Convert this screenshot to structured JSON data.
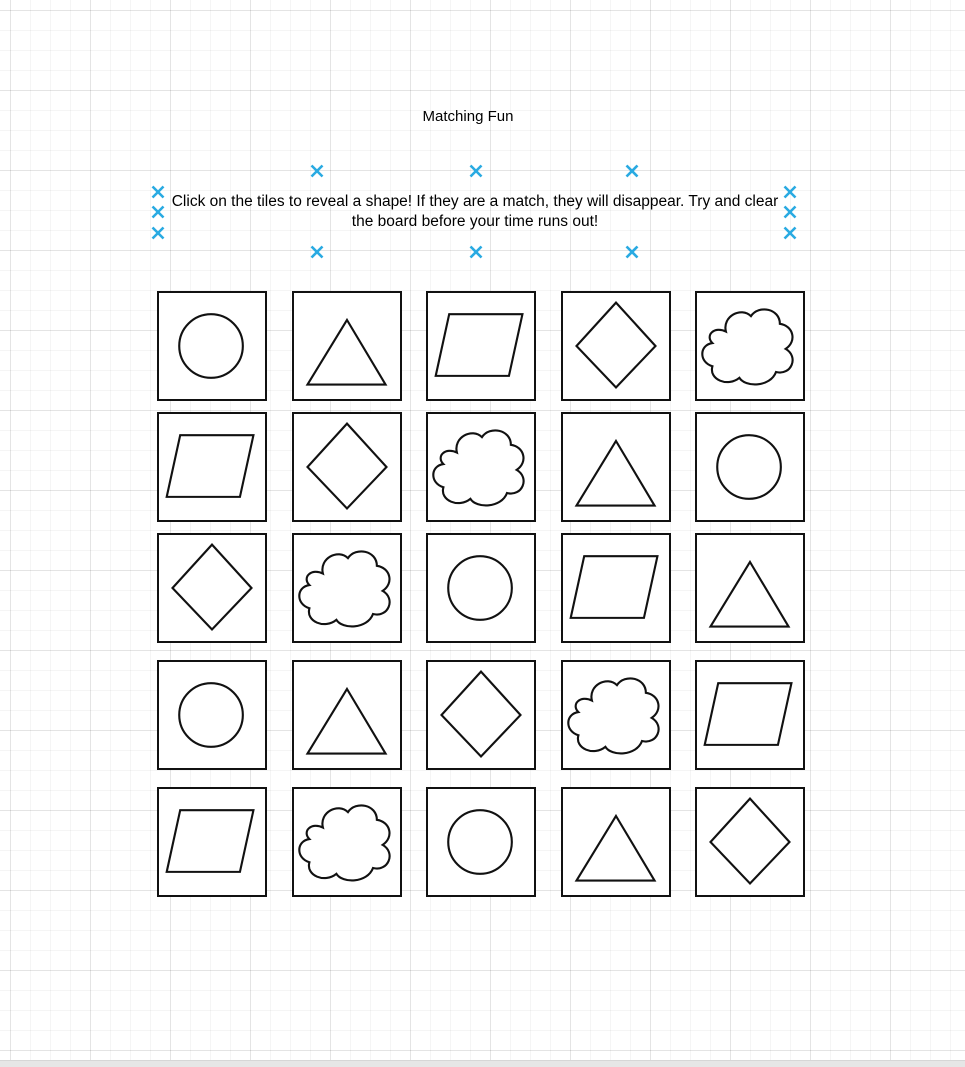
{
  "title": "Matching Fun",
  "instructions": "Click on the tiles to reveal a shape!  If they are a match, they will disappear. Try and clear the board before your time runs out!",
  "colors": {
    "handle": "#29aae2",
    "tile_stroke": "#111111",
    "grid_line": "#e9e9e9",
    "background": "#ffffff"
  },
  "board": {
    "rows": 5,
    "columns": 5,
    "tiles": [
      [
        "circle-icon",
        "triangle-icon",
        "parallelogram-icon",
        "diamond-icon",
        "cloud-icon"
      ],
      [
        "parallelogram-icon",
        "diamond-icon",
        "cloud-icon",
        "triangle-icon",
        "circle-icon"
      ],
      [
        "diamond-icon",
        "cloud-icon",
        "circle-icon",
        "parallelogram-icon",
        "triangle-icon"
      ],
      [
        "circle-icon",
        "triangle-icon",
        "diamond-icon",
        "cloud-icon",
        "parallelogram-icon"
      ],
      [
        "parallelogram-icon",
        "cloud-icon",
        "circle-icon",
        "triangle-icon",
        "diamond-icon"
      ]
    ]
  },
  "selection_handle_icon": "x-mark-icon"
}
